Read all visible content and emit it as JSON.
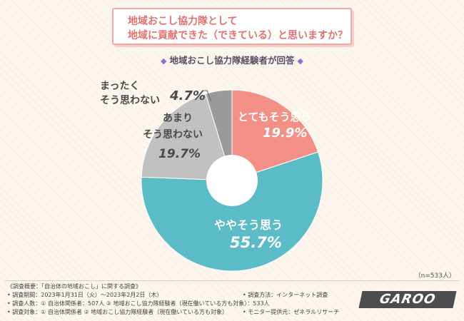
{
  "title": {
    "line1": "地域おこし協力隊として",
    "line2": "地域に貢献できた（できている）と思いますか？"
  },
  "subtitle": "地域おこし協力隊経験者が回答",
  "chart_data": {
    "type": "pie",
    "donut": true,
    "categories": [
      "とてもそう思う",
      "ややそう思う",
      "あまりそう思わない",
      "まったくそう思わない"
    ],
    "values": [
      19.9,
      55.7,
      19.7,
      4.7
    ],
    "value_labels": [
      "19.9%",
      "55.7%",
      "19.7%",
      "4.7%"
    ],
    "colors": [
      "#f28f87",
      "#5bbcc8",
      "#c1c1c1",
      "#9a9a9a"
    ],
    "unit": "%",
    "sample_note": "（n=533人）"
  },
  "labels": {
    "s0_name": "とてもそう思う",
    "s1_name": "ややそう思う",
    "s2_name_1": "あまり",
    "s2_name_2": "そう思わない",
    "s3_name_1": "まったく",
    "s3_name_2": "そう思わない"
  },
  "footer": {
    "overview": "《調査概要：「自治体の地域おこし」に関する調査》",
    "period": "• 調査期間：2023年1月31日（火）～2023年2月2日（木）",
    "respondents": "• 調査人数：① 自治体関係者：507人 ② 地域おこし協力隊経験者（現在働いている方も対象）：533人",
    "target": "• 調査対象：① 自治体関係者 ② 地域おこし協力隊経験者（現在働いている方も対象）",
    "method": "• 調査方法：インターネット調査",
    "provider": "• モニター提供元：ゼネラルリサーチ",
    "logo_text": "GAROO"
  }
}
